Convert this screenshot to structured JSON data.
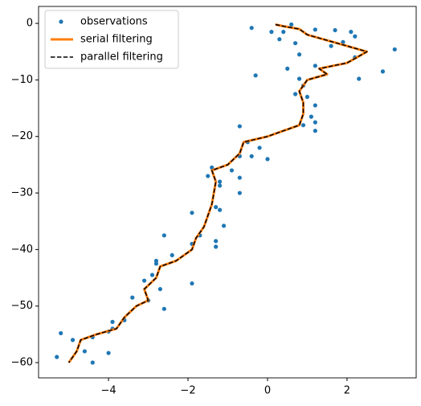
{
  "chart_data": {
    "type": "line",
    "xlim": [
      -5.76,
      3.74
    ],
    "ylim": [
      -62.7,
      3.0
    ],
    "xticks": [
      {
        "value": -4,
        "label": "−4"
      },
      {
        "value": -2,
        "label": "−2"
      },
      0,
      2
    ],
    "yticks": [
      0,
      {
        "value": -10,
        "label": "−10"
      },
      {
        "value": -20,
        "label": "−20"
      },
      {
        "value": -30,
        "label": "−30"
      },
      {
        "value": -40,
        "label": "−40"
      },
      {
        "value": -50,
        "label": "−50"
      },
      {
        "value": -60,
        "label": "−60"
      }
    ],
    "legend": "upper left",
    "series": [
      {
        "name": "observations",
        "type": "scatter",
        "color": "#1f77b4",
        "x": [
          3.2,
          2.9,
          2.3,
          2.2,
          2.2,
          2.1,
          1.9,
          1.7,
          1.6,
          1.2,
          1.2,
          1.2,
          1.2,
          1.2,
          1.1,
          1.0,
          0.9,
          0.9,
          0.8,
          0.8,
          0.7,
          0.6,
          0.4,
          0.3,
          0.1,
          -0.4,
          0.7,
          0.5,
          -0.3,
          0.0,
          -0.2,
          -0.5,
          -0.7,
          -0.4,
          -0.7,
          -0.9,
          -1.2,
          -0.7,
          -0.7,
          -1.2,
          -1.5,
          -1.4,
          -1.2,
          -1.1,
          -1.3,
          -1.3,
          -1.3,
          -1.7,
          -1.9,
          -1.9,
          -1.9,
          -2.6,
          -2.4,
          -2.8,
          -2.8,
          -2.9,
          -2.7,
          -3.1,
          -3.0,
          -3.4,
          -2.6,
          -3.6,
          -3.9,
          -3.9,
          -4.0,
          -4.0,
          -4.4,
          -4.4,
          -4.9,
          -4.6,
          -5.2,
          -5.3
        ],
        "y": [
          -4.6,
          -8.5,
          -9.8,
          -6,
          -2.3,
          -1.5,
          -3.3,
          -1.2,
          -4,
          -1.1,
          -7.5,
          -14.5,
          -17.5,
          -19,
          -16.5,
          -13,
          -11,
          -18,
          -9.8,
          -5.5,
          -3.5,
          -0.2,
          -1.5,
          -2.8,
          -1.5,
          -0.8,
          -12.5,
          -8,
          -9.2,
          -24,
          -22,
          -21,
          -18.2,
          -23.5,
          -23.5,
          -26,
          -28.7,
          -27.3,
          -30,
          -28,
          -27,
          -25.5,
          -33,
          -35.8,
          -32.5,
          -38.5,
          -39.5,
          -37.5,
          -33.5,
          -39,
          -46,
          -37.5,
          -41,
          -42,
          -42.5,
          -44.5,
          -47,
          -45.5,
          -49,
          -48.5,
          -50.5,
          -52.5,
          -54,
          -52.8,
          -54.5,
          -58.3,
          -55.5,
          -60,
          -56,
          -58,
          -54.8,
          -59
        ]
      },
      {
        "name": "serial filtering",
        "type": "line",
        "color": "#ff7f0e",
        "linewidth": 3,
        "x": [
          0.2,
          0.4,
          0.8,
          1.0,
          1.5,
          2.0,
          2.5,
          2.0,
          1.3,
          1.5,
          1.0,
          0.8,
          0.9,
          0.9,
          0.8,
          0.4,
          0.0,
          -0.6,
          -0.7,
          -1.0,
          -1.4,
          -1.3,
          -1.35,
          -1.4,
          -1.5,
          -1.6,
          -1.8,
          -1.9,
          -2.3,
          -2.7,
          -2.8,
          -3.1,
          -3.0,
          -3.3,
          -3.6,
          -3.8,
          -4.3,
          -4.7,
          -4.8,
          -5.0
        ],
        "y": [
          -0.2,
          -0.5,
          -1,
          -2,
          -3,
          -4,
          -5,
          -7,
          -8,
          -9,
          -10,
          -12,
          -14,
          -16,
          -18,
          -19,
          -20,
          -21,
          -23,
          -25,
          -26,
          -28,
          -30,
          -32,
          -34,
          -36,
          -38,
          -40,
          -42,
          -43,
          -45,
          -47,
          -49,
          -50,
          -52,
          -54,
          -55,
          -56,
          -58,
          -60
        ]
      },
      {
        "name": "parallel filtering",
        "type": "line",
        "color": "#000000",
        "linewidth": 1.5,
        "dashed": true,
        "x": [
          0.2,
          0.4,
          0.8,
          1.0,
          1.5,
          2.0,
          2.5,
          2.0,
          1.3,
          1.5,
          1.0,
          0.8,
          0.9,
          0.9,
          0.8,
          0.4,
          0.0,
          -0.6,
          -0.7,
          -1.0,
          -1.4,
          -1.3,
          -1.35,
          -1.4,
          -1.5,
          -1.6,
          -1.8,
          -1.9,
          -2.3,
          -2.7,
          -2.8,
          -3.1,
          -3.0,
          -3.3,
          -3.6,
          -3.8,
          -4.3,
          -4.7,
          -4.8,
          -5.0
        ],
        "y": [
          -0.2,
          -0.5,
          -1,
          -2,
          -3,
          -4,
          -5,
          -7,
          -8,
          -9,
          -10,
          -12,
          -14,
          -16,
          -18,
          -19,
          -20,
          -21,
          -23,
          -25,
          -26,
          -28,
          -30,
          -32,
          -34,
          -36,
          -38,
          -40,
          -42,
          -43,
          -45,
          -47,
          -49,
          -50,
          -52,
          -54,
          -55,
          -56,
          -58,
          -60
        ]
      }
    ]
  }
}
